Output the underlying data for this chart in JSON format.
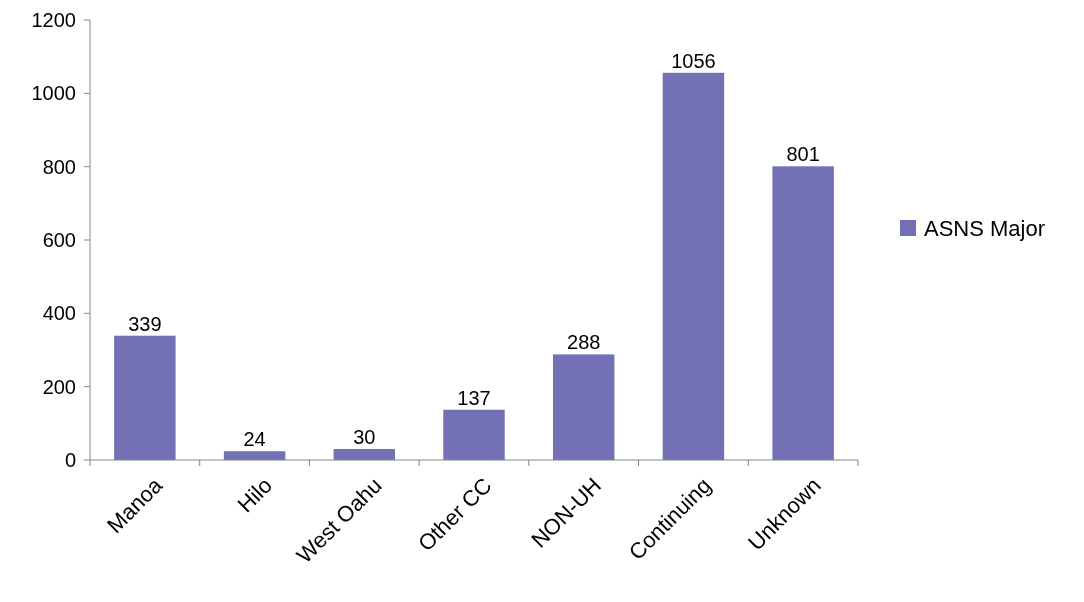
{
  "chart_data": {
    "type": "bar",
    "categories": [
      "Manoa",
      "Hilo",
      "West Oahu",
      "Other CC",
      "NON-UH",
      "Continuing",
      "Unknown"
    ],
    "series": [
      {
        "name": "ASNS Major",
        "color": "#7370b5",
        "values": [
          339,
          24,
          30,
          137,
          288,
          1056,
          801
        ]
      }
    ],
    "ylim": [
      0,
      1200
    ],
    "yticks": [
      0,
      200,
      400,
      600,
      800,
      1000,
      1200
    ],
    "data_labels": true,
    "grid": false,
    "legend": "right"
  }
}
